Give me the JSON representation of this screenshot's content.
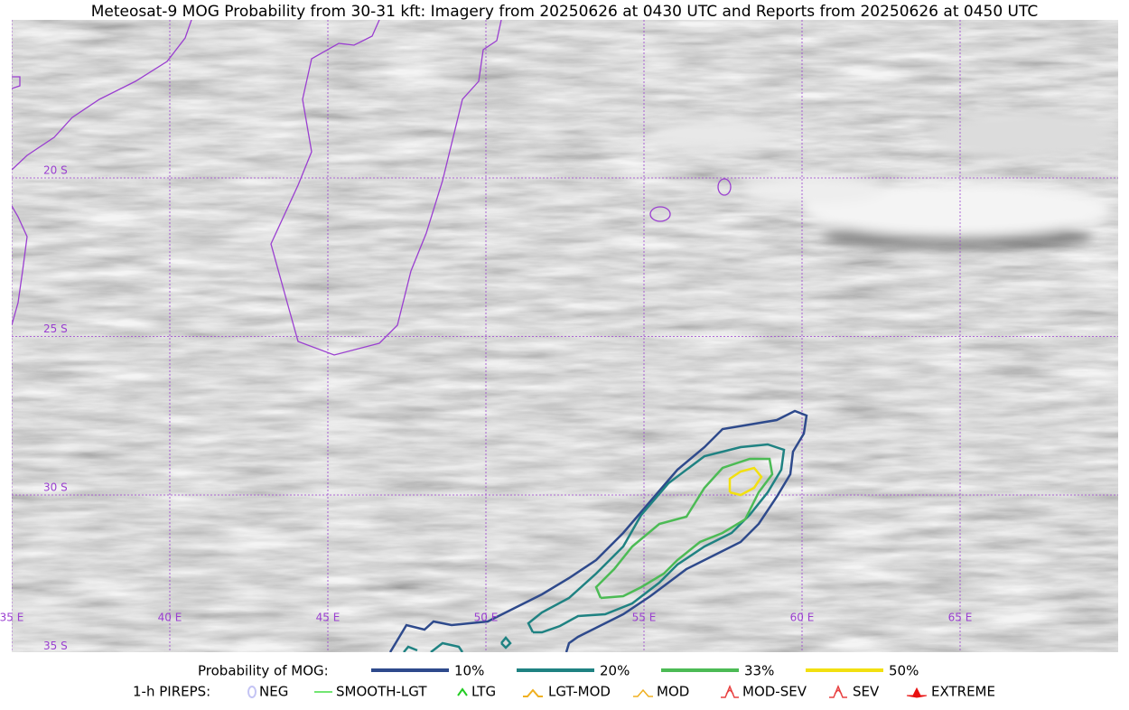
{
  "title": "Meteosat-9 MOG Probability from 30-31 kft: Imagery from 20250626 at 0430 UTC and Reports from 20250626 at 0450 UTC",
  "map": {
    "lat_labels": [
      "20 S",
      "25 S",
      "30 S",
      "35 S"
    ],
    "lon_labels": [
      "35 E",
      "40 E",
      "45 E",
      "50 E",
      "55 E",
      "60 E",
      "65 E"
    ]
  },
  "legend": {
    "mog": {
      "title": "Probability of MOG:",
      "items": [
        {
          "label": "10%",
          "color": "#2e4a8c"
        },
        {
          "label": "20%",
          "color": "#1f8282"
        },
        {
          "label": "33%",
          "color": "#4cbb55"
        },
        {
          "label": "50%",
          "color": "#f2e010"
        }
      ]
    },
    "pireps": {
      "title": "1-h PIREPS:",
      "items": [
        {
          "label": "NEG",
          "color": "#c4c4f4"
        },
        {
          "label": "SMOOTH-LGT",
          "color": "#44dd44"
        },
        {
          "label": "LTG",
          "color": "#22cc22"
        },
        {
          "label": "LGT-MOD",
          "color": "#f0b020"
        },
        {
          "label": "MOD",
          "color": "#f0b020"
        },
        {
          "label": "MOD-SEV",
          "color": "#e84040"
        },
        {
          "label": "SEV",
          "color": "#e84040"
        },
        {
          "label": "EXTREME",
          "color": "#e81010"
        }
      ]
    }
  }
}
